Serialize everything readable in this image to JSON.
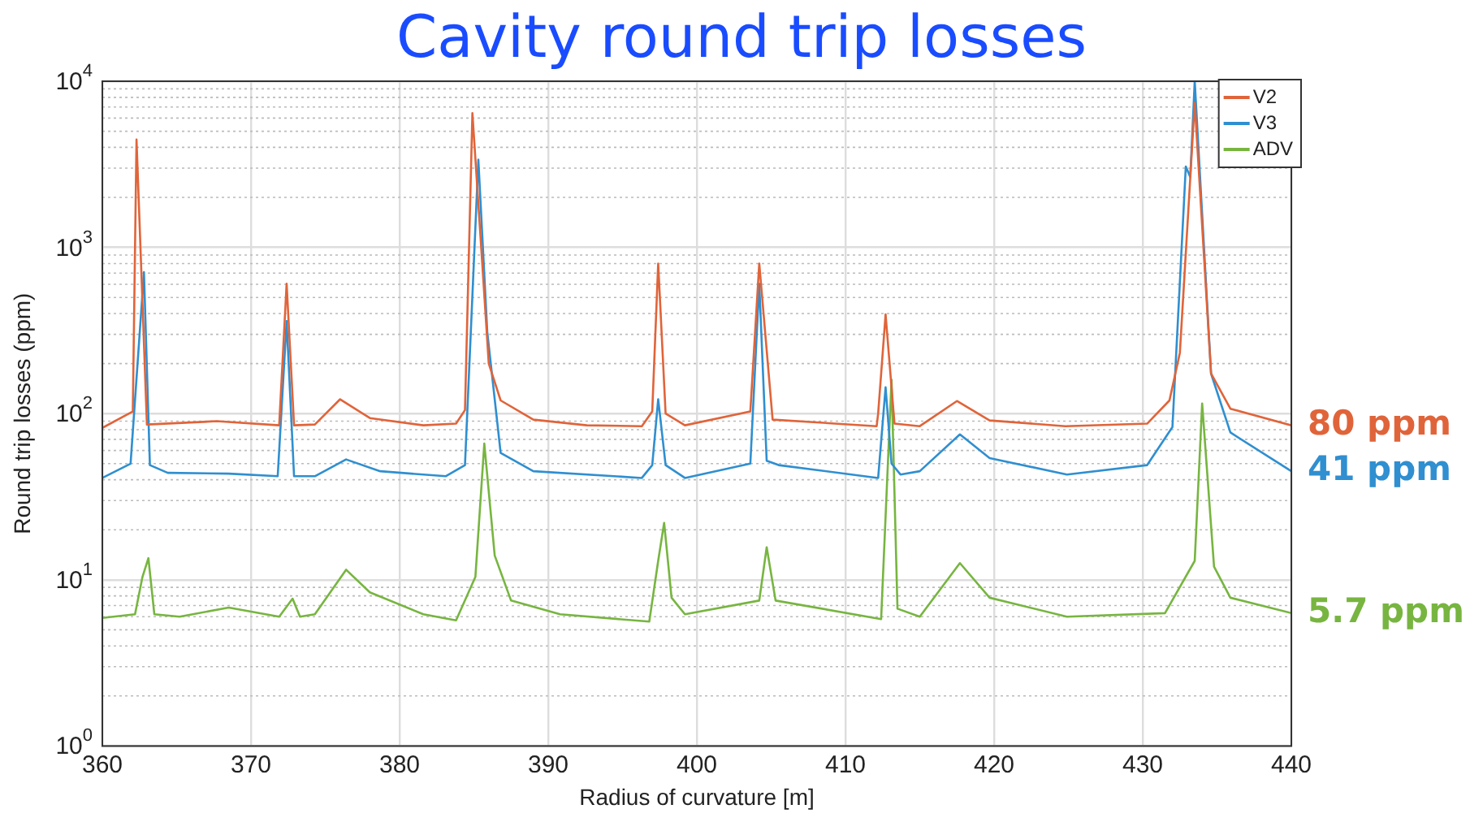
{
  "chart_data": {
    "type": "line",
    "title": "Cavity round trip losses",
    "xlabel": "Radius of curvature [m]",
    "ylabel": "Round trip losses (ppm)",
    "log": "y",
    "grid": true,
    "legend": "top right",
    "marker": "none",
    "line_style": "solid",
    "xlim": [
      360,
      440
    ],
    "xticks": [
      360,
      370,
      380,
      390,
      400,
      410,
      420,
      430,
      440
    ],
    "ylim": [
      1,
      10000
    ],
    "yticks": [
      {
        "value": 1,
        "label": "10$^{0}$"
      },
      {
        "value": 10,
        "label": "10$^{1}$"
      },
      {
        "value": 100,
        "label": "10$^{2}$"
      },
      {
        "value": 1000,
        "label": "10$^{3}$"
      },
      {
        "value": 10000,
        "label": "10$^{4}$"
      }
    ],
    "series": [
      {
        "name": "V2",
        "color": "#e0643a",
        "x": [
          360,
          362.05,
          362.3,
          363.0,
          367.7,
          371.9,
          372.4,
          372.9,
          374.3,
          376.0,
          378.0,
          381.6,
          383.8,
          384.4,
          384.9,
          385.7,
          386.0,
          386.8,
          389.0,
          392.6,
          396.3,
          397.0,
          397.4,
          397.9,
          399.2,
          403.6,
          404.2,
          405.1,
          412.1,
          412.2,
          412.7,
          413.3,
          415.0,
          417.5,
          419.7,
          424.8,
          430.3,
          431.8,
          432.5,
          433.5,
          434.6,
          435.9,
          440
        ],
        "values": [
          82,
          103,
          4460,
          86,
          90,
          85,
          605,
          85,
          86,
          122,
          94,
          85,
          87,
          105,
          6430,
          520,
          200,
          120,
          92,
          85,
          84,
          103,
          800,
          100,
          85,
          103,
          800,
          92,
          84,
          100,
          395,
          87,
          84,
          119,
          91,
          84,
          87,
          120,
          232,
          7400,
          174,
          107,
          85
        ]
      },
      {
        "name": "V3",
        "color": "#2f8fd0",
        "x": [
          360,
          361.9,
          362.8,
          363.2,
          364.4,
          368.5,
          371.8,
          372.4,
          372.9,
          374.3,
          376.4,
          378.7,
          383.1,
          384.4,
          385.3,
          385.9,
          386.8,
          389.0,
          396.3,
          397.0,
          397.4,
          397.9,
          399.2,
          403.6,
          404.2,
          404.7,
          405.5,
          412.2,
          412.7,
          413.1,
          413.7,
          415.0,
          417.7,
          419.7,
          424.9,
          430.3,
          432.0,
          432.9,
          433.2,
          433.5,
          434.6,
          435.9,
          440
        ],
        "values": [
          41,
          50,
          710,
          49,
          44,
          43.5,
          42,
          360,
          42,
          42,
          53,
          45,
          42,
          49,
          3370,
          310,
          58,
          45,
          41,
          49,
          122,
          49,
          41,
          50,
          605,
          52,
          49,
          41,
          144,
          50,
          43,
          45,
          75,
          54,
          43,
          49,
          83,
          3070,
          2650,
          10000,
          174,
          77,
          45
        ]
      },
      {
        "name": "ADV",
        "color": "#77b540",
        "x": [
          360,
          362.2,
          362.7,
          363.1,
          363.5,
          365.2,
          368.5,
          371.9,
          372.8,
          373.3,
          374.3,
          376.4,
          378.0,
          381.6,
          383.8,
          385.1,
          385.7,
          386.4,
          387.5,
          390.8,
          396.8,
          397.4,
          397.8,
          398.3,
          399.2,
          404.2,
          404.7,
          405.3,
          412.4,
          413.1,
          413.5,
          415.0,
          417.7,
          419.7,
          424.9,
          431.5,
          433.5,
          434.0,
          434.8,
          435.9,
          440
        ],
        "values": [
          5.9,
          6.2,
          10.4,
          13.5,
          6.2,
          6.0,
          6.8,
          6.0,
          7.7,
          6.0,
          6.2,
          11.5,
          8.4,
          6.2,
          5.7,
          10.4,
          66,
          14,
          7.5,
          6.2,
          5.6,
          13,
          22,
          7.8,
          6.2,
          7.5,
          15.7,
          7.5,
          5.8,
          160,
          6.7,
          6.0,
          12.6,
          7.8,
          6.0,
          6.3,
          13,
          115,
          12,
          7.8,
          6.3
        ]
      }
    ],
    "annotations": [
      "80 ppm",
      "41 ppm",
      "5.7 ppm"
    ]
  }
}
